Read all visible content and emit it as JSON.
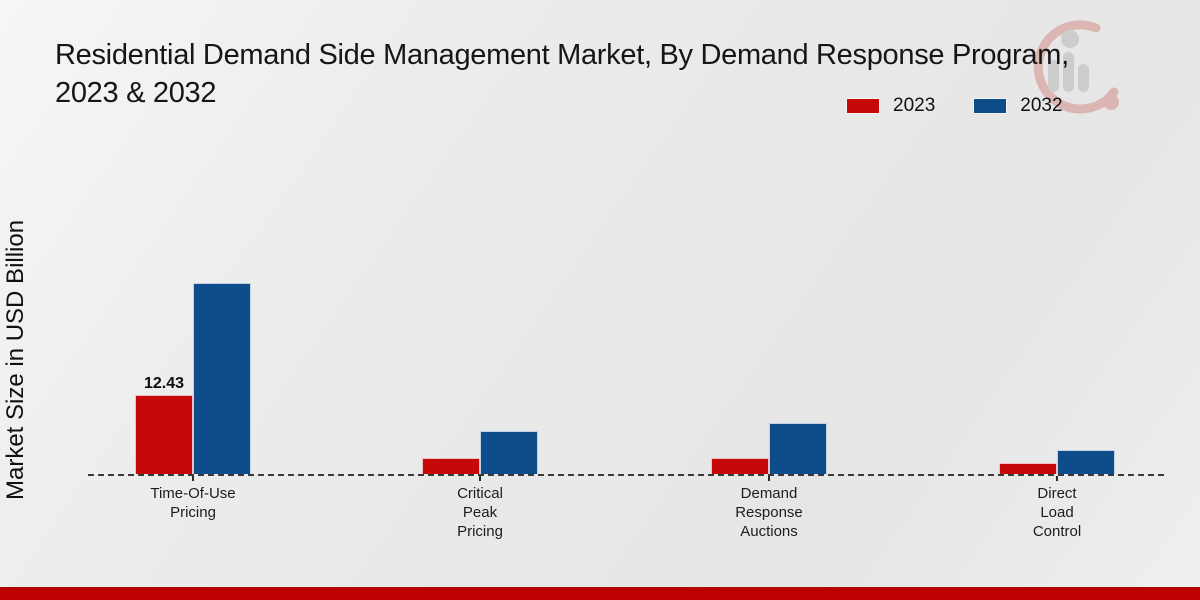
{
  "title": {
    "line1": "Residential Demand Side Management Market, By Demand Response Program,",
    "line2": "2023 & 2032"
  },
  "y_axis_label": "Market Size in USD Billion",
  "legend": {
    "items": [
      {
        "label": "2023",
        "color": "#c50808"
      },
      {
        "label": "2032",
        "color": "#0f4d8a"
      }
    ]
  },
  "watermark_icon": "market-research-logo-watermark",
  "colors": {
    "series_2023": "#c50808",
    "series_2032": "#0f4d8a",
    "footer_band": "#bd0000",
    "baseline": "#3a3a3a",
    "background": "#eaeaea"
  },
  "chart_data": {
    "type": "bar",
    "title": "Residential Demand Side Management Market, By Demand Response Program, 2023 & 2032",
    "xlabel": "",
    "ylabel": "Market Size in USD Billion",
    "legend_position": "top-right",
    "grid": false,
    "baseline_style": "dashed",
    "categories": [
      "Time-Of-Use\nPricing",
      "Critical\nPeak\nPricing",
      "Demand\nResponse\nAuctions",
      "Direct\nLoad\nControl"
    ],
    "series": [
      {
        "name": "2023",
        "color": "#c50808",
        "values": [
          12.43,
          2.5,
          2.5,
          1.7
        ],
        "value_labels": [
          "12.43",
          "",
          "",
          ""
        ]
      },
      {
        "name": "2032",
        "color": "#0f4d8a",
        "values": [
          30.0,
          6.7,
          8.0,
          3.8
        ],
        "value_labels": [
          "",
          "",
          "",
          ""
        ]
      }
    ],
    "ylim": [
      0,
      33
    ],
    "note_only_labeled_value": "12.43"
  }
}
